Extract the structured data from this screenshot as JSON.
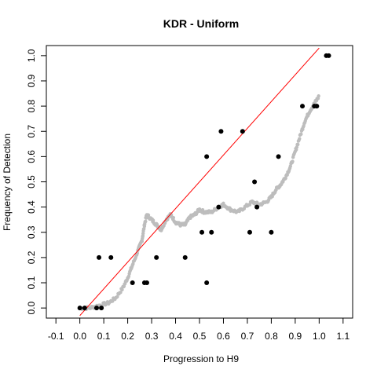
{
  "chart_data": {
    "type": "scatter",
    "title": "KDR - Uniform",
    "xlabel": "Progression to H9",
    "ylabel": "Frequency of Detection",
    "xlim": [
      -0.14,
      1.14
    ],
    "ylim": [
      -0.04,
      1.04
    ],
    "xticks": [
      "-0.1",
      "0.0",
      "0.1",
      "0.2",
      "0.3",
      "0.4",
      "0.5",
      "0.6",
      "0.7",
      "0.8",
      "0.9",
      "1.0",
      "1.1"
    ],
    "yticks": [
      "0.0",
      "0.1",
      "0.2",
      "0.3",
      "0.4",
      "0.5",
      "0.6",
      "0.7",
      "0.8",
      "0.9",
      "1.0"
    ],
    "grid": false,
    "reference_line": {
      "x": [
        0.0,
        1.0
      ],
      "y": [
        -0.03,
        1.03
      ],
      "color": "#ff0000"
    },
    "colors": {
      "observed": "#000000",
      "smooth": "#bdbdbd",
      "reference": "#ff0000"
    },
    "series": [
      {
        "marker": "filled-circle",
        "points": [
          [
            0.0,
            0.0
          ],
          [
            0.02,
            0.0
          ],
          [
            0.07,
            0.0
          ],
          [
            0.09,
            0.0
          ],
          [
            0.08,
            0.2
          ],
          [
            0.13,
            0.2
          ],
          [
            0.22,
            0.1
          ],
          [
            0.27,
            0.1
          ],
          [
            0.28,
            0.1
          ],
          [
            0.32,
            0.2
          ],
          [
            0.44,
            0.2
          ],
          [
            0.51,
            0.3
          ],
          [
            0.53,
            0.6
          ],
          [
            0.53,
            0.1
          ],
          [
            0.55,
            0.3
          ],
          [
            0.58,
            0.4
          ],
          [
            0.59,
            0.7
          ],
          [
            0.68,
            0.7
          ],
          [
            0.71,
            0.3
          ],
          [
            0.73,
            0.5
          ],
          [
            0.74,
            0.4
          ],
          [
            0.8,
            0.3
          ],
          [
            0.83,
            0.6
          ],
          [
            0.93,
            0.8
          ],
          [
            0.98,
            0.8
          ],
          [
            0.99,
            0.8
          ],
          [
            1.03,
            1.0
          ],
          [
            1.04,
            1.0
          ]
        ]
      },
      {
        "marker": "small-circle",
        "curve": [
          [
            0.0,
            0.0
          ],
          [
            0.04,
            0.0
          ],
          [
            0.08,
            0.01
          ],
          [
            0.12,
            0.02
          ],
          [
            0.15,
            0.04
          ],
          [
            0.18,
            0.08
          ],
          [
            0.2,
            0.12
          ],
          [
            0.22,
            0.17
          ],
          [
            0.24,
            0.22
          ],
          [
            0.26,
            0.27
          ],
          [
            0.27,
            0.33
          ],
          [
            0.28,
            0.37
          ],
          [
            0.3,
            0.35
          ],
          [
            0.32,
            0.33
          ],
          [
            0.34,
            0.31
          ],
          [
            0.36,
            0.35
          ],
          [
            0.38,
            0.37
          ],
          [
            0.4,
            0.34
          ],
          [
            0.42,
            0.33
          ],
          [
            0.44,
            0.33
          ],
          [
            0.46,
            0.36
          ],
          [
            0.48,
            0.37
          ],
          [
            0.5,
            0.39
          ],
          [
            0.52,
            0.38
          ],
          [
            0.55,
            0.38
          ],
          [
            0.58,
            0.4
          ],
          [
            0.6,
            0.41
          ],
          [
            0.63,
            0.39
          ],
          [
            0.66,
            0.38
          ],
          [
            0.69,
            0.4
          ],
          [
            0.72,
            0.42
          ],
          [
            0.75,
            0.41
          ],
          [
            0.78,
            0.42
          ],
          [
            0.8,
            0.44
          ],
          [
            0.82,
            0.47
          ],
          [
            0.84,
            0.49
          ],
          [
            0.86,
            0.52
          ],
          [
            0.88,
            0.56
          ],
          [
            0.9,
            0.62
          ],
          [
            0.92,
            0.68
          ],
          [
            0.94,
            0.74
          ],
          [
            0.96,
            0.78
          ],
          [
            0.98,
            0.81
          ],
          [
            1.0,
            0.84
          ]
        ]
      }
    ]
  }
}
